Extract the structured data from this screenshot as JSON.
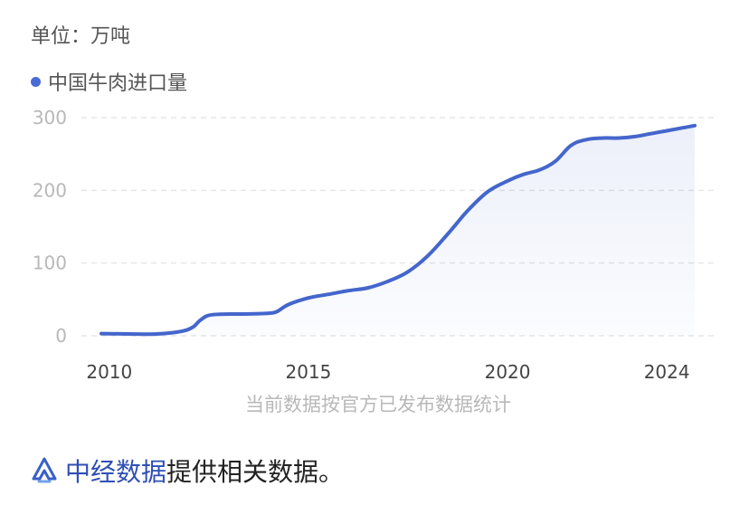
{
  "unit_label": "单位：万吨",
  "note": "当前数据按官方已发布数据统计",
  "footer": {
    "brand": "中经数据",
    "text": "提供相关数据。"
  },
  "colors": {
    "line": "#4466cc",
    "dot": "#4a6bd4",
    "brand": "#2f4fb5"
  },
  "chart_data": {
    "type": "area",
    "legend": [
      "中国牛肉进口量"
    ],
    "series": [
      {
        "name": "中国牛肉进口量",
        "x": [
          2009.8,
          2010.5,
          2011.2,
          2011.8,
          2012.1,
          2012.3,
          2012.6,
          2013.5,
          2014.0,
          2014.2,
          2014.5,
          2015.0,
          2015.5,
          2016.0,
          2016.5,
          2017.0,
          2017.5,
          2018.0,
          2018.5,
          2019.0,
          2019.5,
          2020.0,
          2020.4,
          2020.8,
          2021.2,
          2021.6,
          2022.0,
          2022.4,
          2022.8,
          2023.2,
          2023.6,
          2024.0,
          2024.4,
          2024.7
        ],
        "values": [
          3,
          2.5,
          2.5,
          6,
          12,
          22,
          29,
          30,
          31,
          33,
          43,
          52,
          57,
          62,
          66,
          75,
          88,
          110,
          140,
          172,
          198,
          213,
          222,
          228,
          240,
          262,
          270,
          272,
          272,
          274,
          278,
          282,
          286,
          289
        ]
      }
    ],
    "xticks": [
      "2010",
      "2015",
      "2020",
      "2024"
    ],
    "xtick_values": [
      2010,
      2015,
      2020,
      2024
    ],
    "yticks": [
      "0",
      "100",
      "200",
      "300"
    ],
    "ytick_values": [
      0,
      100,
      200,
      300
    ],
    "xlim": [
      2009.3,
      2025.2
    ],
    "ylim": [
      0,
      300
    ],
    "grid": true
  }
}
